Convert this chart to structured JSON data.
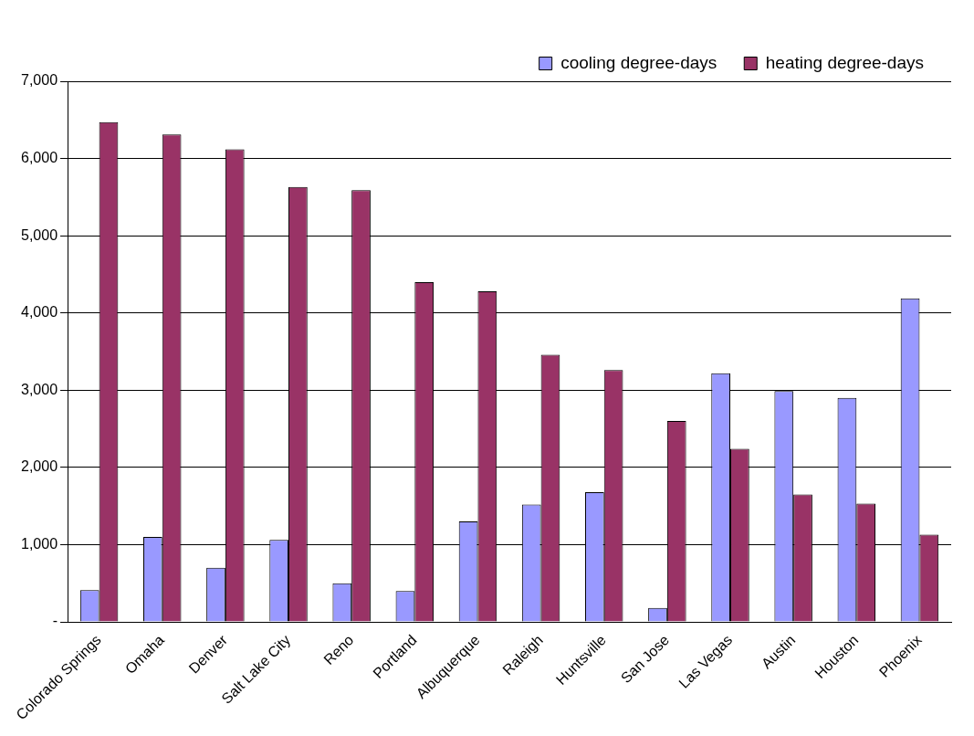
{
  "chart_data": {
    "type": "bar",
    "categories": [
      "Colorado Springs",
      "Omaha",
      "Denver",
      "Salt Lake City",
      "Reno",
      "Portland",
      "Albuquerque",
      "Raleigh",
      "Huntsville",
      "San Jose",
      "Las Vegas",
      "Austin",
      "Houston",
      "Phoenix"
    ],
    "series": [
      {
        "name": "cooling degree-days",
        "color": "#9999ff",
        "values": [
          410,
          1100,
          700,
          1060,
          500,
          400,
          1300,
          1520,
          1680,
          180,
          3220,
          2990,
          2900,
          4190
        ]
      },
      {
        "name": "heating degree-days",
        "color": "#993366",
        "values": [
          6470,
          6310,
          6120,
          5630,
          5590,
          4400,
          4280,
          3460,
          3260,
          2600,
          2240,
          1650,
          1530,
          1130
        ]
      }
    ],
    "ylim": [
      0,
      7000
    ],
    "yticks": [
      {
        "value": 0,
        "label": "-"
      },
      {
        "value": 1000,
        "label": "1,000"
      },
      {
        "value": 2000,
        "label": "2,000"
      },
      {
        "value": 3000,
        "label": "3,000"
      },
      {
        "value": 4000,
        "label": "4,000"
      },
      {
        "value": 5000,
        "label": "5,000"
      },
      {
        "value": 6000,
        "label": "6,000"
      },
      {
        "value": 7000,
        "label": "7,000"
      }
    ],
    "grid": "y",
    "legend": "top right"
  }
}
